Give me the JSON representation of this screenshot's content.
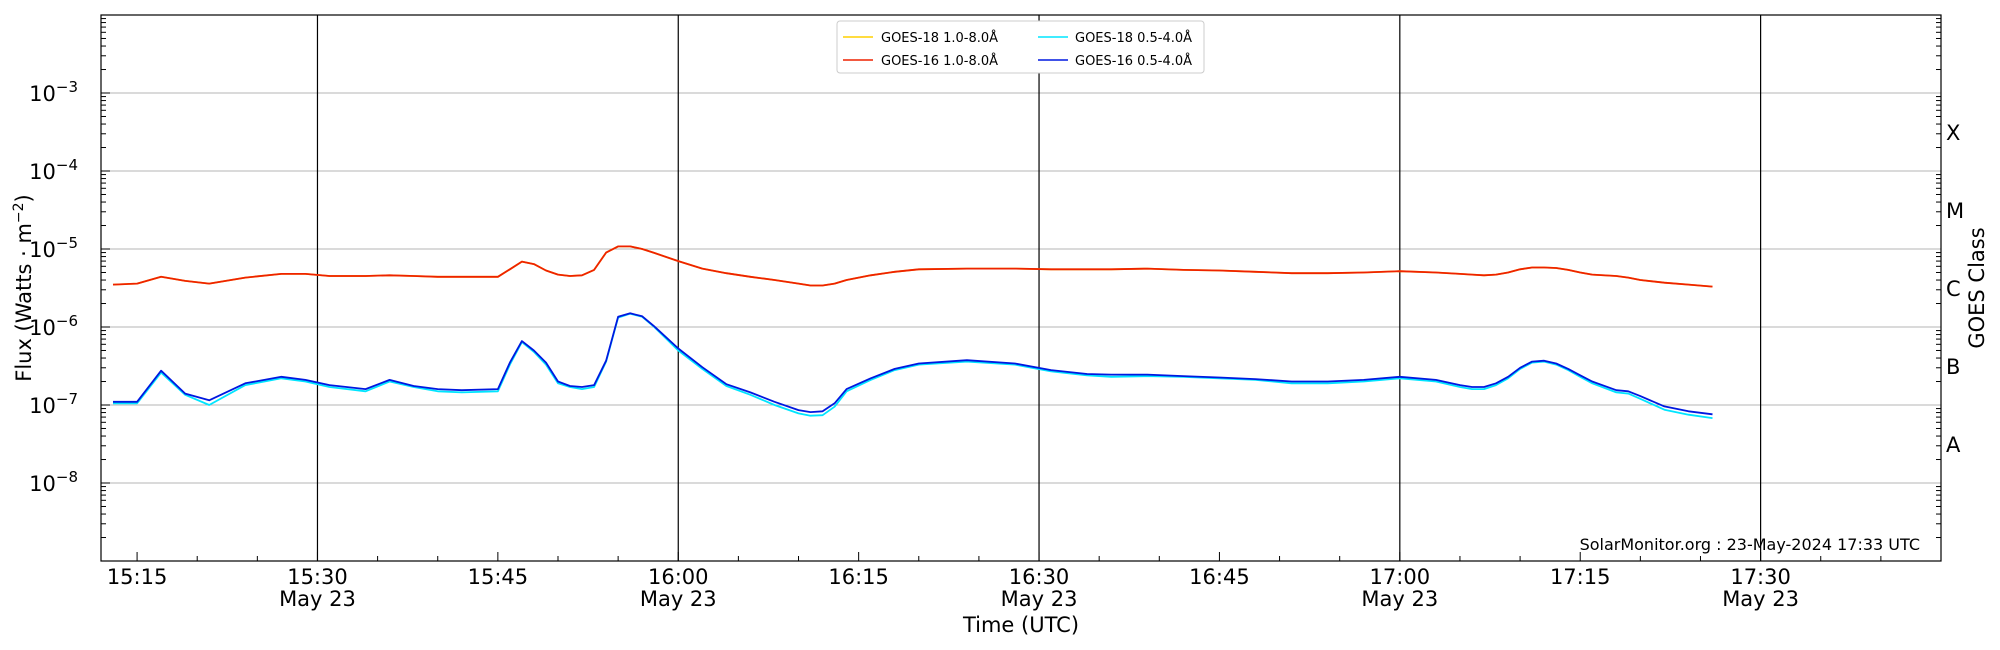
{
  "chart_data": {
    "type": "line",
    "title": "",
    "xlabel": "Time (UTC)",
    "ylabel": "Flux (Watts · m^-2)",
    "ylabel_right": "GOES Class",
    "y_scale": "log",
    "ylim": [
      1e-09,
      0.01
    ],
    "xlim": [
      "2024-05-23 15:12",
      "2024-05-23 17:45"
    ],
    "x_ticks": [
      {
        "label": "15:15",
        "sublabel": ""
      },
      {
        "label": "15:30",
        "sublabel": "May 23"
      },
      {
        "label": "15:45",
        "sublabel": ""
      },
      {
        "label": "16:00",
        "sublabel": "May 23"
      },
      {
        "label": "16:15",
        "sublabel": ""
      },
      {
        "label": "16:30",
        "sublabel": "May 23"
      },
      {
        "label": "16:45",
        "sublabel": ""
      },
      {
        "label": "17:00",
        "sublabel": "May 23"
      },
      {
        "label": "17:15",
        "sublabel": ""
      },
      {
        "label": "17:30",
        "sublabel": "May 23"
      }
    ],
    "y_ticks": [
      {
        "exp": "-8",
        "value": 1e-08
      },
      {
        "exp": "-7",
        "value": 1e-07
      },
      {
        "exp": "-6",
        "value": 1e-06
      },
      {
        "exp": "-5",
        "value": 1e-05
      },
      {
        "exp": "-4",
        "value": 0.0001
      },
      {
        "exp": "-3",
        "value": 0.001
      }
    ],
    "goes_classes": [
      "A",
      "B",
      "C",
      "M",
      "X"
    ],
    "grid": "horizontal",
    "legend_position": "top-center",
    "annotation": "SolarMonitor.org : 23-May-2024 17:33 UTC",
    "x": [
      "15:13",
      "15:15",
      "15:17",
      "15:19",
      "15:21",
      "15:24",
      "15:27",
      "15:29",
      "15:31",
      "15:34",
      "15:36",
      "15:38",
      "15:40",
      "15:42",
      "15:45",
      "15:46",
      "15:47",
      "15:48",
      "15:49",
      "15:50",
      "15:51",
      "15:52",
      "15:53",
      "15:54",
      "15:55",
      "15:56",
      "15:57",
      "15:58",
      "16:00",
      "16:02",
      "16:04",
      "16:06",
      "16:08",
      "16:10",
      "16:11",
      "16:12",
      "16:13",
      "16:14",
      "16:16",
      "16:18",
      "16:20",
      "16:24",
      "16:28",
      "16:31",
      "16:34",
      "16:36",
      "16:39",
      "16:42",
      "16:45",
      "16:48",
      "16:51",
      "16:54",
      "16:57",
      "17:00",
      "17:03",
      "17:05",
      "17:06",
      "17:07",
      "17:08",
      "17:09",
      "17:10",
      "17:11",
      "17:12",
      "17:13",
      "17:14",
      "17:15",
      "17:16",
      "17:18",
      "17:19",
      "17:20",
      "17:22",
      "17:24",
      "17:26"
    ],
    "series": [
      {
        "name": "GOES-18 1.0-8.0Å",
        "color": "#ffd000",
        "values": [
          3.5e-06,
          3.6e-06,
          4.4e-06,
          3.9e-06,
          3.6e-06,
          4.3e-06,
          4.8e-06,
          4.8e-06,
          4.5e-06,
          4.5e-06,
          4.6e-06,
          4.5e-06,
          4.4e-06,
          4.4e-06,
          4.4e-06,
          5.5e-06,
          6.9e-06,
          6.4e-06,
          5.3e-06,
          4.7e-06,
          4.5e-06,
          4.6e-06,
          5.4e-06,
          9e-06,
          1.08e-05,
          1.08e-05,
          1e-05,
          8.9e-06,
          7e-06,
          5.6e-06,
          4.9e-06,
          4.4e-06,
          4e-06,
          3.6e-06,
          3.4e-06,
          3.4e-06,
          3.6e-06,
          4e-06,
          4.6e-06,
          5.1e-06,
          5.5e-06,
          5.6e-06,
          5.6e-06,
          5.5e-06,
          5.5e-06,
          5.5e-06,
          5.6e-06,
          5.4e-06,
          5.3e-06,
          5.1e-06,
          4.9e-06,
          4.9e-06,
          5e-06,
          5.2e-06,
          5e-06,
          4.8e-06,
          4.7e-06,
          4.6e-06,
          4.7e-06,
          5e-06,
          5.5e-06,
          5.8e-06,
          5.8e-06,
          5.7e-06,
          5.4e-06,
          5e-06,
          4.7e-06,
          4.5e-06,
          4.3e-06,
          4e-06,
          3.7e-06,
          3.5e-06,
          3.3e-06
        ]
      },
      {
        "name": "GOES-16 1.0-8.0Å",
        "color": "#ee2200",
        "values": [
          3.5e-06,
          3.6e-06,
          4.4e-06,
          3.9e-06,
          3.6e-06,
          4.3e-06,
          4.8e-06,
          4.8e-06,
          4.5e-06,
          4.5e-06,
          4.6e-06,
          4.5e-06,
          4.4e-06,
          4.4e-06,
          4.4e-06,
          5.5e-06,
          6.9e-06,
          6.4e-06,
          5.3e-06,
          4.7e-06,
          4.5e-06,
          4.6e-06,
          5.4e-06,
          9e-06,
          1.08e-05,
          1.08e-05,
          1e-05,
          8.9e-06,
          7e-06,
          5.6e-06,
          4.9e-06,
          4.4e-06,
          4e-06,
          3.6e-06,
          3.4e-06,
          3.4e-06,
          3.6e-06,
          4e-06,
          4.6e-06,
          5.1e-06,
          5.5e-06,
          5.6e-06,
          5.6e-06,
          5.5e-06,
          5.5e-06,
          5.5e-06,
          5.6e-06,
          5.4e-06,
          5.3e-06,
          5.1e-06,
          4.9e-06,
          4.9e-06,
          5e-06,
          5.2e-06,
          5e-06,
          4.8e-06,
          4.7e-06,
          4.6e-06,
          4.7e-06,
          5e-06,
          5.5e-06,
          5.8e-06,
          5.8e-06,
          5.7e-06,
          5.4e-06,
          5e-06,
          4.7e-06,
          4.5e-06,
          4.3e-06,
          4e-06,
          3.7e-06,
          3.5e-06,
          3.3e-06
        ]
      },
      {
        "name": "GOES-18 0.5-4.0Å",
        "color": "#00e5ff",
        "values": [
          1.05e-07,
          1.05e-07,
          2.6e-07,
          1.35e-07,
          1e-07,
          1.8e-07,
          2.2e-07,
          2e-07,
          1.7e-07,
          1.5e-07,
          2e-07,
          1.7e-07,
          1.5e-07,
          1.45e-07,
          1.5e-07,
          3.3e-07,
          6.4e-07,
          4.8e-07,
          3.3e-07,
          1.9e-07,
          1.7e-07,
          1.6e-07,
          1.7e-07,
          3.6e-07,
          1.32e-06,
          1.48e-06,
          1.35e-06,
          1e-06,
          5e-07,
          2.9e-07,
          1.75e-07,
          1.35e-07,
          1e-07,
          7.8e-08,
          7.3e-08,
          7.4e-08,
          9.5e-08,
          1.5e-07,
          2.1e-07,
          2.8e-07,
          3.3e-07,
          3.6e-07,
          3.3e-07,
          2.7e-07,
          2.4e-07,
          2.3e-07,
          2.35e-07,
          2.3e-07,
          2.2e-07,
          2.1e-07,
          1.9e-07,
          1.9e-07,
          2e-07,
          2.2e-07,
          2e-07,
          1.7e-07,
          1.6e-07,
          1.6e-07,
          1.8e-07,
          2.2e-07,
          2.9e-07,
          3.5e-07,
          3.6e-07,
          3.3e-07,
          2.8e-07,
          2.3e-07,
          1.9e-07,
          1.45e-07,
          1.4e-07,
          1.2e-07,
          8.7e-08,
          7.5e-08,
          6.8e-08
        ]
      },
      {
        "name": "GOES-16 0.5-4.0Å",
        "color": "#0018e0",
        "values": [
          1.1e-07,
          1.1e-07,
          2.75e-07,
          1.4e-07,
          1.15e-07,
          1.9e-07,
          2.3e-07,
          2.1e-07,
          1.8e-07,
          1.6e-07,
          2.1e-07,
          1.75e-07,
          1.6e-07,
          1.55e-07,
          1.6e-07,
          3.5e-07,
          6.6e-07,
          5e-07,
          3.5e-07,
          2e-07,
          1.75e-07,
          1.7e-07,
          1.8e-07,
          3.7e-07,
          1.35e-06,
          1.5e-06,
          1.37e-06,
          1.02e-06,
          5.3e-07,
          3.05e-07,
          1.85e-07,
          1.45e-07,
          1.1e-07,
          8.6e-08,
          8.1e-08,
          8.3e-08,
          1.05e-07,
          1.6e-07,
          2.2e-07,
          2.9e-07,
          3.4e-07,
          3.75e-07,
          3.4e-07,
          2.8e-07,
          2.5e-07,
          2.45e-07,
          2.45e-07,
          2.35e-07,
          2.25e-07,
          2.15e-07,
          2e-07,
          2e-07,
          2.1e-07,
          2.3e-07,
          2.1e-07,
          1.8e-07,
          1.7e-07,
          1.7e-07,
          1.9e-07,
          2.3e-07,
          3e-07,
          3.6e-07,
          3.7e-07,
          3.4e-07,
          2.9e-07,
          2.4e-07,
          2e-07,
          1.55e-07,
          1.5e-07,
          1.3e-07,
          9.6e-08,
          8.3e-08,
          7.6e-08
        ]
      }
    ],
    "vertical_lines": [
      "15:30",
      "16:00",
      "16:30",
      "17:00",
      "17:30"
    ]
  }
}
